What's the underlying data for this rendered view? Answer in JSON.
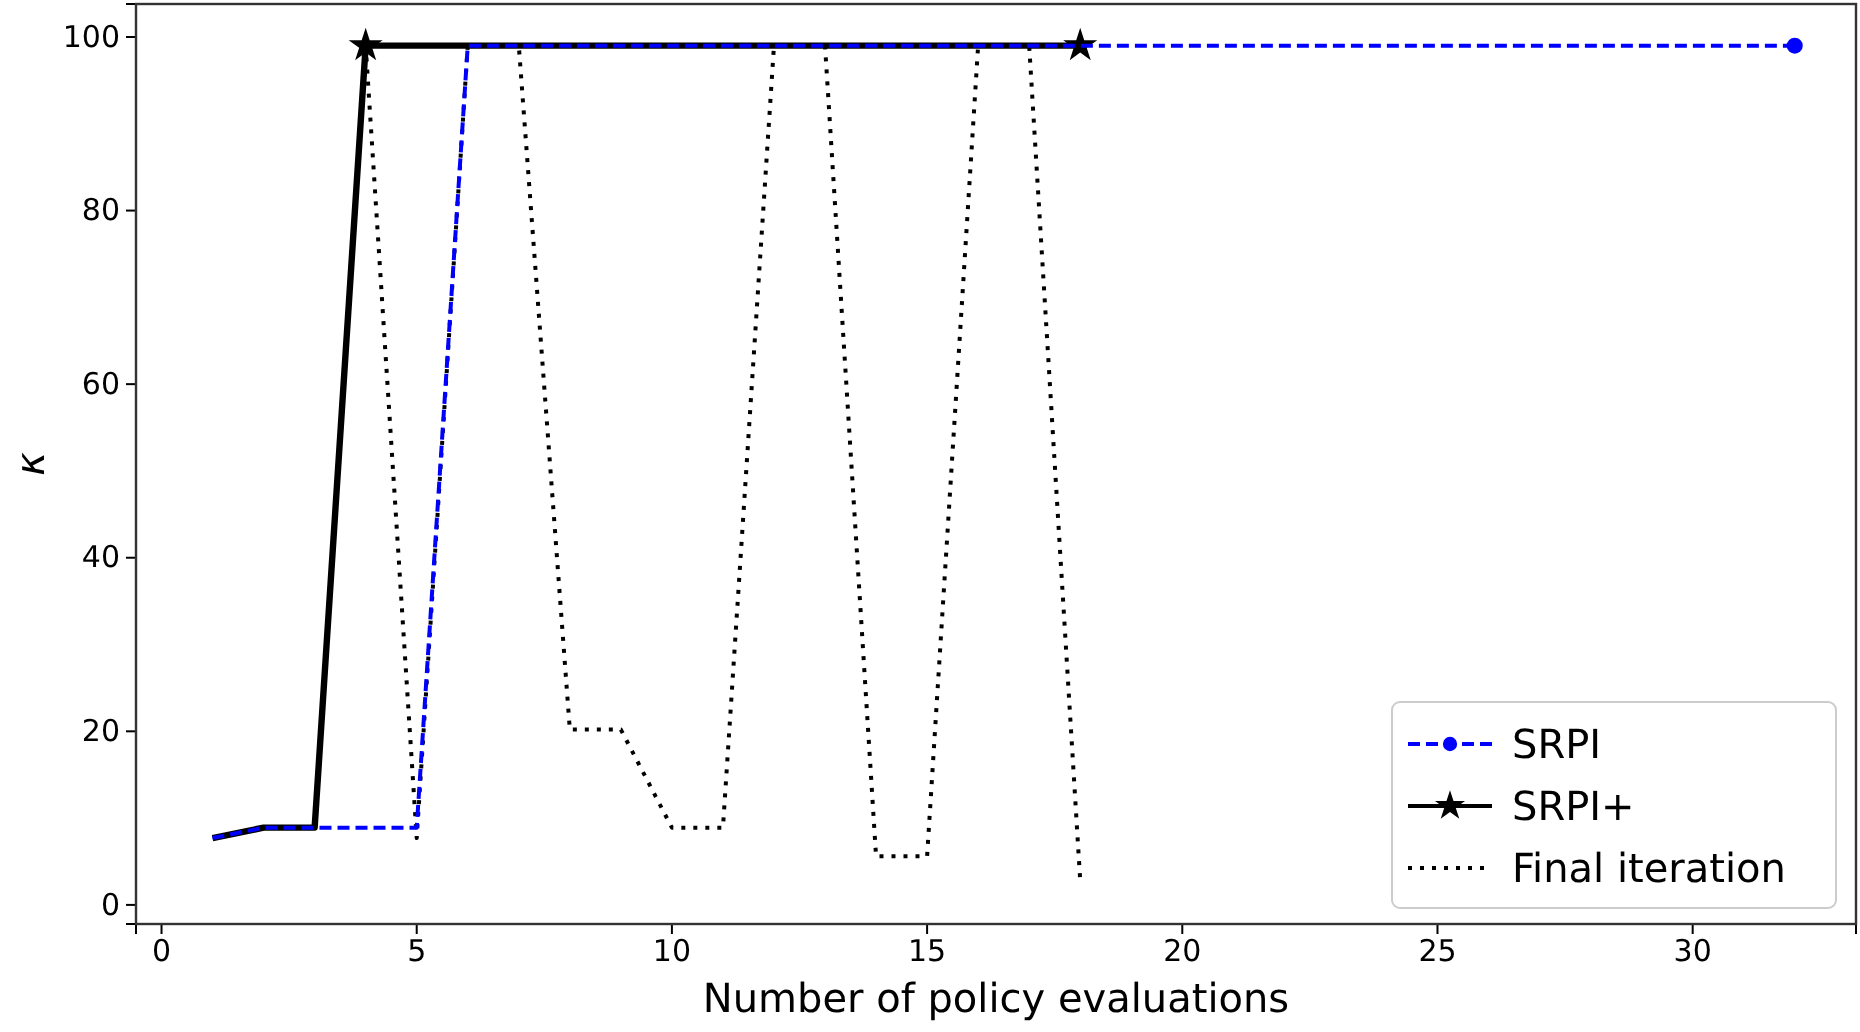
{
  "chart_data": {
    "type": "line",
    "xlabel": "Number of policy evaluations",
    "ylabel": "κ",
    "xlim": [
      -0.5,
      33.2
    ],
    "ylim": [
      -2.2,
      103.8
    ],
    "xticks": [
      0,
      5,
      10,
      15,
      20,
      25,
      30
    ],
    "yticks": [
      0,
      20,
      40,
      60,
      80,
      100
    ],
    "grid": false,
    "legend": "bottom right",
    "series": [
      {
        "name": "SRPI",
        "color": "#0000ff",
        "line_style": "dashed",
        "x": [
          1,
          2,
          3,
          4,
          5,
          6,
          32
        ],
        "values": [
          7.7,
          8.9,
          8.9,
          8.9,
          8.9,
          99,
          99
        ]
      },
      {
        "type": "scatter",
        "color": "#0000ff",
        "marker": "circle",
        "x": [
          32
        ],
        "values": [
          99
        ]
      },
      {
        "name": "SRPI+",
        "color": "#000000",
        "line_style": "solid",
        "x": [
          1,
          2,
          3,
          4,
          18
        ],
        "values": [
          7.7,
          8.9,
          8.9,
          99,
          99
        ]
      },
      {
        "type": "scatter",
        "color": "#000000",
        "marker": "star",
        "x": [
          4,
          18
        ],
        "values": [
          99,
          99
        ]
      },
      {
        "name": "Final iteration",
        "color": "#000000",
        "line_style": "dotted",
        "marker": "none",
        "x": [
          4,
          5,
          6,
          7,
          8,
          9,
          10,
          11,
          12,
          13,
          14,
          15,
          16,
          17,
          18
        ],
        "values": [
          99,
          7.7,
          99,
          99,
          20.2,
          20.2,
          8.9,
          8.9,
          99,
          99,
          5.6,
          5.6,
          99,
          99,
          2.8
        ]
      }
    ]
  }
}
